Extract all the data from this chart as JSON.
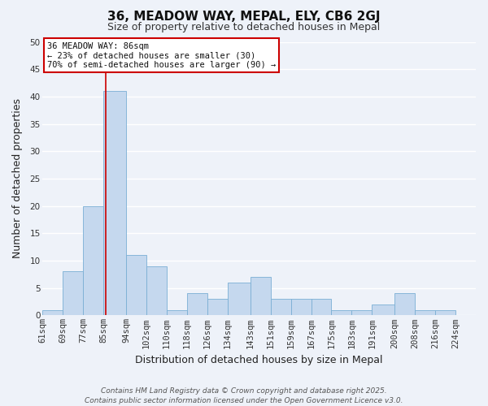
{
  "title": "36, MEADOW WAY, MEPAL, ELY, CB6 2GJ",
  "subtitle": "Size of property relative to detached houses in Mepal",
  "xlabel": "Distribution of detached houses by size in Mepal",
  "ylabel": "Number of detached properties",
  "bin_labels": [
    "61sqm",
    "69sqm",
    "77sqm",
    "85sqm",
    "94sqm",
    "102sqm",
    "110sqm",
    "118sqm",
    "126sqm",
    "134sqm",
    "143sqm",
    "151sqm",
    "159sqm",
    "167sqm",
    "175sqm",
    "183sqm",
    "191sqm",
    "200sqm",
    "208sqm",
    "216sqm",
    "224sqm"
  ],
  "bin_edges": [
    61,
    69,
    77,
    85,
    94,
    102,
    110,
    118,
    126,
    134,
    143,
    151,
    159,
    167,
    175,
    183,
    191,
    200,
    208,
    216,
    224
  ],
  "bar_widths": [
    8,
    8,
    8,
    9,
    8,
    8,
    8,
    8,
    8,
    9,
    8,
    8,
    8,
    8,
    8,
    8,
    9,
    8,
    8,
    8
  ],
  "bar_heights": [
    1,
    8,
    20,
    41,
    11,
    9,
    1,
    4,
    3,
    6,
    7,
    3,
    3,
    3,
    1,
    1,
    2,
    4,
    1,
    1
  ],
  "bar_color": "#c5d8ee",
  "bar_edge_color": "#7aafd4",
  "ylim": [
    0,
    50
  ],
  "yticks": [
    0,
    5,
    10,
    15,
    20,
    25,
    30,
    35,
    40,
    45,
    50
  ],
  "vline_x": 86,
  "vline_color": "#cc0000",
  "annotation_line1": "36 MEADOW WAY: 86sqm",
  "annotation_line2": "← 23% of detached houses are smaller (30)",
  "annotation_line3": "70% of semi-detached houses are larger (90) →",
  "box_edge_color": "#cc0000",
  "bg_color": "#eef2f9",
  "grid_color": "#ffffff",
  "footer_line1": "Contains HM Land Registry data © Crown copyright and database right 2025.",
  "footer_line2": "Contains public sector information licensed under the Open Government Licence v3.0.",
  "title_fontsize": 11,
  "subtitle_fontsize": 9,
  "axis_label_fontsize": 9,
  "tick_fontsize": 7.5,
  "annotation_fontsize": 7.5,
  "footer_fontsize": 6.5
}
